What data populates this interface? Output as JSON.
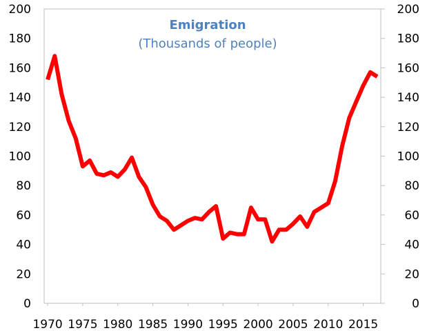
{
  "chart_data": {
    "type": "line",
    "title": "Emigration",
    "subtitle": "(Thousands of people)",
    "xlabel": "",
    "ylabel": "",
    "xlim": [
      1969.5,
      2017.5
    ],
    "ylim": [
      0,
      200
    ],
    "y_ticks": [
      "0",
      "20",
      "40",
      "60",
      "80",
      "100",
      "120",
      "140",
      "160",
      "180",
      "200"
    ],
    "x_ticks": [
      "1970",
      "1975",
      "1980",
      "1985",
      "1990",
      "1995",
      "2000",
      "2005",
      "2010",
      "2015"
    ],
    "secondary_y_axis": true,
    "grid": false,
    "legend": "none",
    "series": [
      {
        "color": "#ff0000",
        "x": [
          1970,
          1971,
          1972,
          1973,
          1974,
          1975,
          1976,
          1977,
          1978,
          1979,
          1980,
          1981,
          1982,
          1983,
          1984,
          1985,
          1986,
          1987,
          1988,
          1989,
          1990,
          1991,
          1992,
          1993,
          1994,
          1995,
          1996,
          1997,
          1998,
          1999,
          2000,
          2001,
          2002,
          2003,
          2004,
          2005,
          2006,
          2007,
          2008,
          2009,
          2010,
          2011,
          2012,
          2013,
          2014,
          2015,
          2016,
          2017
        ],
        "values": [
          152,
          168,
          142,
          124,
          112,
          93,
          97,
          88,
          87,
          89,
          86,
          91,
          99,
          86,
          79,
          67,
          59,
          56,
          50,
          53,
          56,
          58,
          57,
          62,
          66,
          44,
          48,
          47,
          47,
          65,
          57,
          57,
          42,
          50,
          50,
          54,
          59,
          52,
          62,
          65,
          68,
          83,
          107,
          126,
          137,
          148,
          157,
          154
        ]
      }
    ]
  }
}
